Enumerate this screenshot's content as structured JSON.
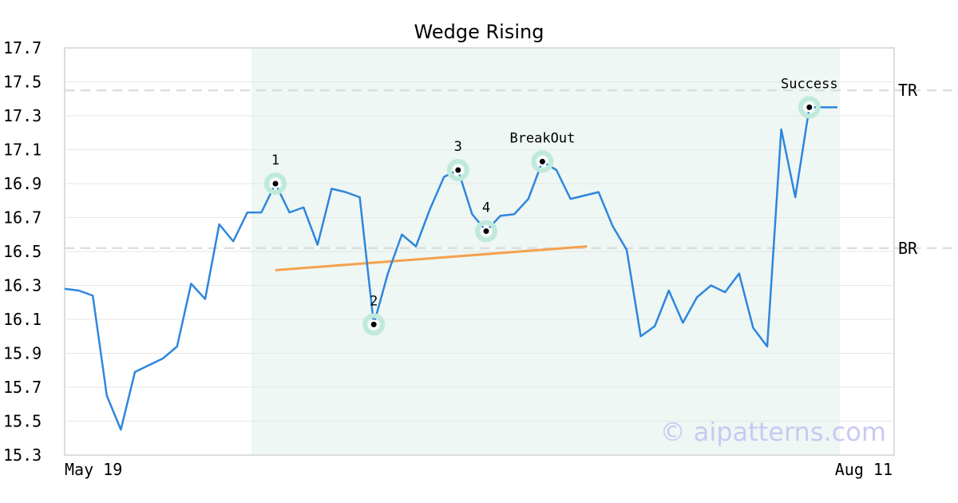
{
  "chart_data": {
    "type": "line",
    "title": "Wedge Rising",
    "xlabel": "",
    "ylabel": "",
    "ylim": [
      15.3,
      17.7
    ],
    "y_ticks": [
      "15.3",
      "15.5",
      "15.7",
      "15.9",
      "16.1",
      "16.3",
      "16.5",
      "16.7",
      "16.9",
      "17.1",
      "17.3",
      "17.5",
      "17.7"
    ],
    "x_tick_labels": [
      "May 19",
      "Aug 11"
    ],
    "grid": true,
    "series": [
      {
        "color": "#2e86de",
        "values": [
          16.28,
          16.27,
          16.24,
          15.65,
          15.45,
          15.79,
          15.83,
          15.87,
          15.94,
          16.31,
          16.22,
          16.66,
          16.56,
          16.73,
          16.73,
          16.9,
          16.73,
          16.76,
          16.54,
          16.87,
          16.85,
          16.82,
          16.07,
          16.37,
          16.6,
          16.53,
          16.75,
          16.94,
          16.98,
          16.72,
          16.62,
          16.71,
          16.72,
          16.81,
          17.03,
          16.98,
          16.81,
          16.83,
          16.85,
          16.65,
          16.51,
          16.0,
          16.06,
          16.27,
          16.08,
          16.23,
          16.3,
          16.26,
          16.37,
          16.05,
          15.94,
          17.22,
          16.82,
          17.35,
          17.35,
          17.35
        ]
      }
    ],
    "horizontal_lines": [
      {
        "label": "TR",
        "value": 17.45
      },
      {
        "label": "BR",
        "value": 16.52
      }
    ],
    "trend_line": {
      "color": "#f5a04e",
      "start": {
        "index": 15,
        "value": 16.39
      },
      "end": {
        "index": 37,
        "value": 16.53
      }
    },
    "highlight_region": {
      "start_index": 13,
      "end_index": 55,
      "color": "#eef7f3"
    },
    "markers": [
      {
        "label": "1",
        "index": 15,
        "value": 16.9
      },
      {
        "label": "2",
        "index": 22,
        "value": 16.07
      },
      {
        "label": "3",
        "index": 28,
        "value": 16.98
      },
      {
        "label": "4",
        "index": 30,
        "value": 16.62
      },
      {
        "label": "BreakOut",
        "index": 34,
        "value": 17.03
      },
      {
        "label": "Success",
        "index": 53,
        "value": 17.35
      }
    ],
    "watermark": "© aipatterns.com"
  }
}
